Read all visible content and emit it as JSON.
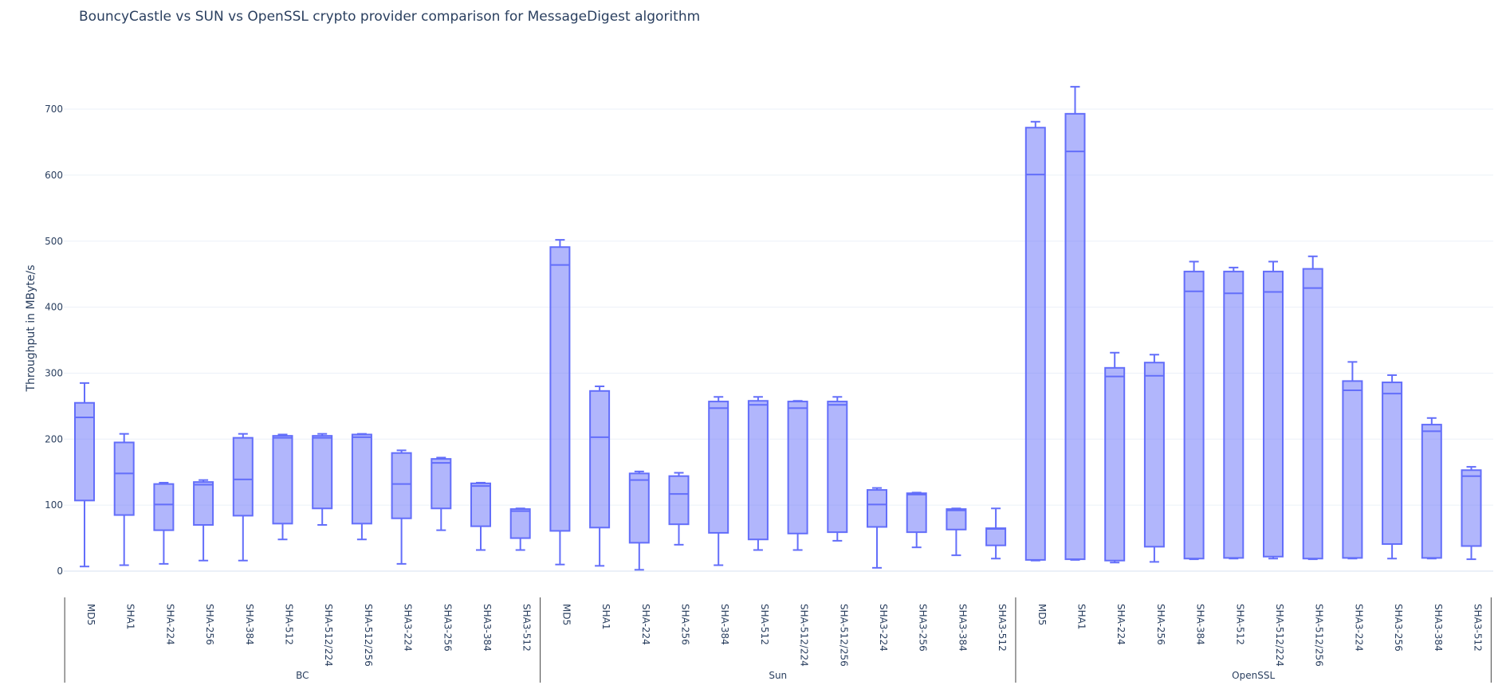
{
  "chart_data": {
    "type": "box",
    "title": "BouncyCastle vs SUN vs OpenSSL crypto provider comparison for MessageDigest algorithm",
    "xlabel": "",
    "ylabel": "Throughput in MByte/s",
    "ylim": [
      0,
      750
    ],
    "yticks": [
      0,
      100,
      200,
      300,
      400,
      500,
      600,
      700
    ],
    "grid": true,
    "color": "#636efa",
    "fill": "rgba(99,110,250,0.5)",
    "groups": [
      {
        "name": "BC",
        "items": [
          {
            "label": "MD5",
            "min": 7,
            "q1": 107,
            "median": 233,
            "q3": 255,
            "max": 285
          },
          {
            "label": "SHA1",
            "min": 9,
            "q1": 85,
            "median": 148,
            "q3": 195,
            "max": 208
          },
          {
            "label": "SHA-224",
            "min": 11,
            "q1": 62,
            "median": 101,
            "q3": 132,
            "max": 134
          },
          {
            "label": "SHA-256",
            "min": 16,
            "q1": 70,
            "median": 131,
            "q3": 135,
            "max": 138
          },
          {
            "label": "SHA-384",
            "min": 16,
            "q1": 84,
            "median": 139,
            "q3": 202,
            "max": 208
          },
          {
            "label": "SHA-512",
            "min": 48,
            "q1": 72,
            "median": 202,
            "q3": 205,
            "max": 207
          },
          {
            "label": "SHA-512/224",
            "min": 70,
            "q1": 95,
            "median": 202,
            "q3": 205,
            "max": 208
          },
          {
            "label": "SHA-512/256",
            "min": 48,
            "q1": 72,
            "median": 203,
            "q3": 207,
            "max": 208
          },
          {
            "label": "SHA3-224",
            "min": 11,
            "q1": 80,
            "median": 132,
            "q3": 179,
            "max": 183
          },
          {
            "label": "SHA3-256",
            "min": 62,
            "q1": 95,
            "median": 164,
            "q3": 170,
            "max": 172
          },
          {
            "label": "SHA3-384",
            "min": 32,
            "q1": 68,
            "median": 129,
            "q3": 133,
            "max": 134
          },
          {
            "label": "SHA3-512",
            "min": 32,
            "q1": 50,
            "median": 91,
            "q3": 94,
            "max": 95
          }
        ]
      },
      {
        "name": "Sun",
        "items": [
          {
            "label": "MD5",
            "min": 10,
            "q1": 61,
            "median": 464,
            "q3": 491,
            "max": 502
          },
          {
            "label": "SHA1",
            "min": 8,
            "q1": 66,
            "median": 203,
            "q3": 273,
            "max": 280
          },
          {
            "label": "SHA-224",
            "min": 2,
            "q1": 43,
            "median": 138,
            "q3": 148,
            "max": 151
          },
          {
            "label": "SHA-256",
            "min": 40,
            "q1": 71,
            "median": 117,
            "q3": 144,
            "max": 149
          },
          {
            "label": "SHA-384",
            "min": 9,
            "q1": 58,
            "median": 247,
            "q3": 257,
            "max": 264
          },
          {
            "label": "SHA-512",
            "min": 32,
            "q1": 48,
            "median": 252,
            "q3": 258,
            "max": 264
          },
          {
            "label": "SHA-512/224",
            "min": 32,
            "q1": 57,
            "median": 247,
            "q3": 257,
            "max": 258
          },
          {
            "label": "SHA-512/256",
            "min": 46,
            "q1": 59,
            "median": 252,
            "q3": 257,
            "max": 264
          },
          {
            "label": "SHA3-224",
            "min": 5,
            "q1": 67,
            "median": 101,
            "q3": 123,
            "max": 126
          },
          {
            "label": "SHA3-256",
            "min": 36,
            "q1": 59,
            "median": 116,
            "q3": 118,
            "max": 119
          },
          {
            "label": "SHA3-384",
            "min": 24,
            "q1": 63,
            "median": 92,
            "q3": 94,
            "max": 95
          },
          {
            "label": "SHA3-512",
            "min": 19,
            "q1": 39,
            "median": 64,
            "q3": 65,
            "max": 95
          }
        ]
      },
      {
        "name": "OpenSSL",
        "items": [
          {
            "label": "MD5",
            "min": 16,
            "q1": 17,
            "median": 601,
            "q3": 672,
            "max": 681
          },
          {
            "label": "SHA1",
            "min": 17,
            "q1": 18,
            "median": 636,
            "q3": 693,
            "max": 734
          },
          {
            "label": "SHA-224",
            "min": 13,
            "q1": 16,
            "median": 295,
            "q3": 308,
            "max": 331
          },
          {
            "label": "SHA-256",
            "min": 14,
            "q1": 37,
            "median": 296,
            "q3": 316,
            "max": 328
          },
          {
            "label": "SHA-384",
            "min": 18,
            "q1": 19,
            "median": 424,
            "q3": 454,
            "max": 469
          },
          {
            "label": "SHA-512",
            "min": 19,
            "q1": 20,
            "median": 421,
            "q3": 454,
            "max": 460
          },
          {
            "label": "SHA-512/224",
            "min": 19,
            "q1": 22,
            "median": 423,
            "q3": 454,
            "max": 469
          },
          {
            "label": "SHA-512/256",
            "min": 18,
            "q1": 19,
            "median": 429,
            "q3": 458,
            "max": 477
          },
          {
            "label": "SHA3-224",
            "min": 19,
            "q1": 20,
            "median": 274,
            "q3": 288,
            "max": 317
          },
          {
            "label": "SHA3-256",
            "min": 19,
            "q1": 41,
            "median": 269,
            "q3": 286,
            "max": 297
          },
          {
            "label": "SHA3-384",
            "min": 19,
            "q1": 20,
            "median": 212,
            "q3": 222,
            "max": 232
          },
          {
            "label": "SHA3-512",
            "min": 18,
            "q1": 38,
            "median": 144,
            "q3": 153,
            "max": 158
          }
        ]
      }
    ]
  }
}
